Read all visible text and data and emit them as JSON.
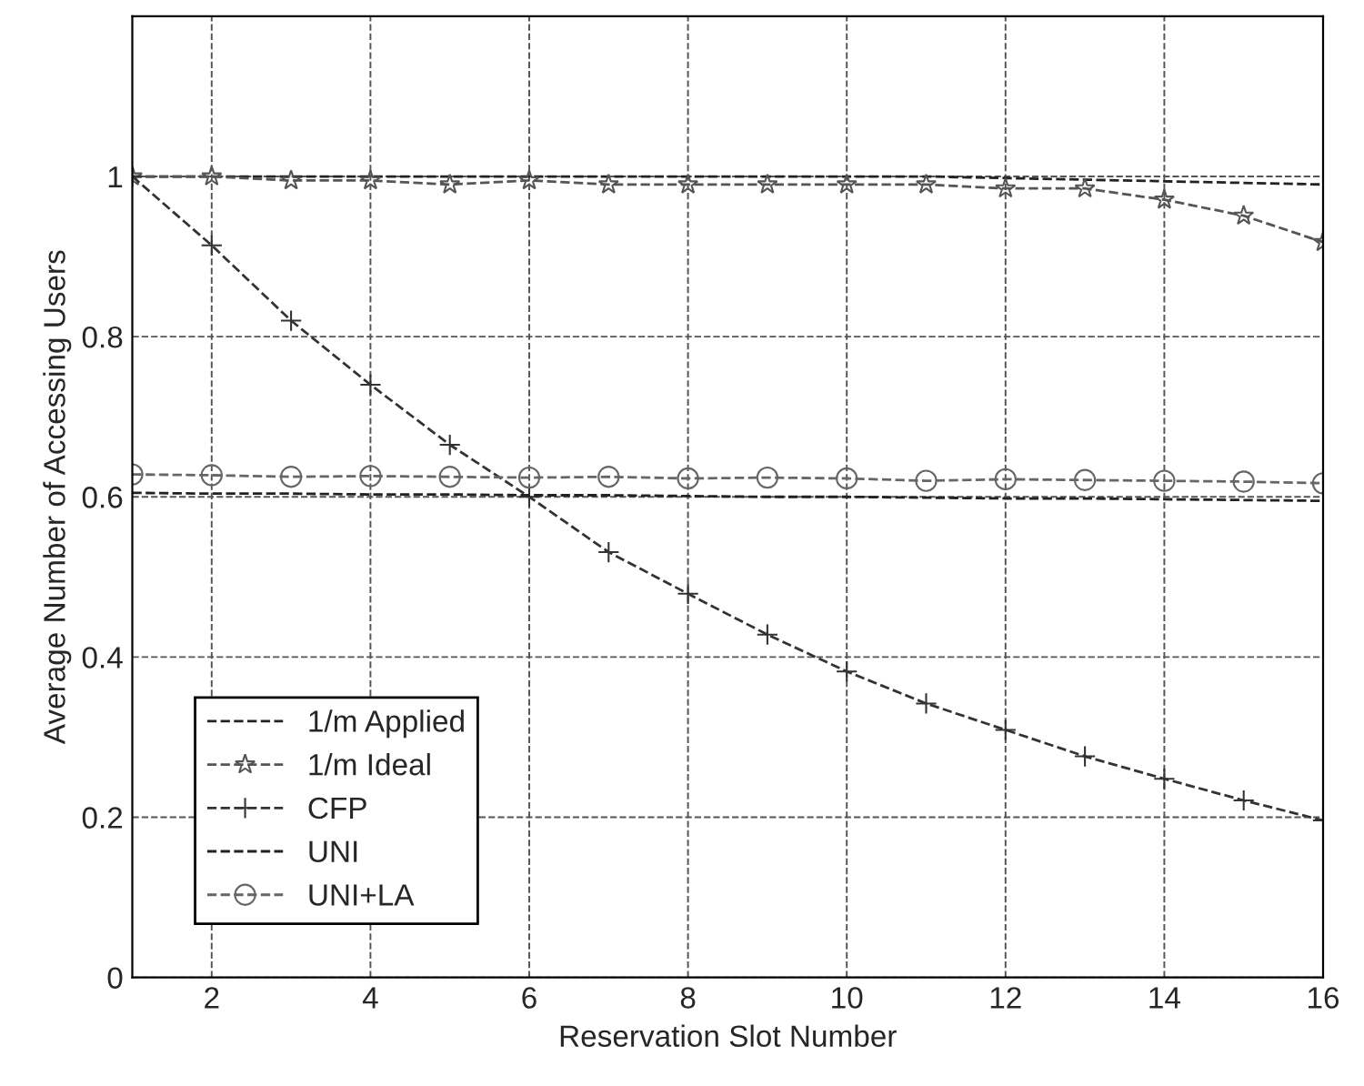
{
  "chart_data": {
    "type": "line",
    "xlabel": "Reservation Slot Number",
    "ylabel": "Average Number of Accessing Users",
    "x": [
      1,
      2,
      3,
      4,
      5,
      6,
      7,
      8,
      9,
      10,
      11,
      12,
      13,
      14,
      15,
      16
    ],
    "series": [
      {
        "name": "1/m Applied",
        "color": "#222222",
        "marker": "none",
        "line_style": "dashed",
        "values": [
          1.0,
          1.0,
          1.0,
          1.0,
          1.0,
          1.0,
          1.0,
          1.0,
          1.0,
          1.0,
          1.0,
          0.998,
          0.996,
          0.994,
          0.992,
          0.99
        ]
      },
      {
        "name": "1/m Ideal",
        "color": "#555555",
        "marker": "star",
        "line_style": "dashed",
        "values": [
          1.0,
          1.0,
          0.995,
          0.995,
          0.99,
          0.995,
          0.99,
          0.99,
          0.99,
          0.99,
          0.99,
          0.985,
          0.985,
          0.971,
          0.951,
          0.918
        ]
      },
      {
        "name": "CFP",
        "color": "#333333",
        "marker": "cross",
        "line_style": "dashed",
        "values": [
          1.0,
          0.914,
          0.82,
          0.74,
          0.665,
          0.6,
          0.531,
          0.479,
          0.428,
          0.382,
          0.342,
          0.309,
          0.276,
          0.248,
          0.221,
          0.196
        ]
      },
      {
        "name": "UNI",
        "color": "#222222",
        "marker": "none",
        "line_style": "dashed",
        "values": [
          0.605,
          0.604,
          0.604,
          0.603,
          0.603,
          0.602,
          0.602,
          0.601,
          0.6,
          0.6,
          0.599,
          0.598,
          0.598,
          0.597,
          0.596,
          0.595
        ]
      },
      {
        "name": "UNI+LA",
        "color": "#666666",
        "marker": "circle",
        "line_style": "dashed",
        "values": [
          0.628,
          0.627,
          0.625,
          0.626,
          0.625,
          0.624,
          0.625,
          0.623,
          0.624,
          0.623,
          0.62,
          0.622,
          0.621,
          0.62,
          0.619,
          0.617
        ]
      }
    ],
    "xlim": [
      1,
      16
    ],
    "xticks": [
      2,
      4,
      6,
      8,
      10,
      12,
      14,
      16
    ],
    "ylim": [
      0,
      1.2
    ],
    "yticks": [
      0,
      0.2,
      0.4,
      0.6,
      0.8,
      1
    ],
    "grid": true,
    "legend": "bottom left"
  }
}
